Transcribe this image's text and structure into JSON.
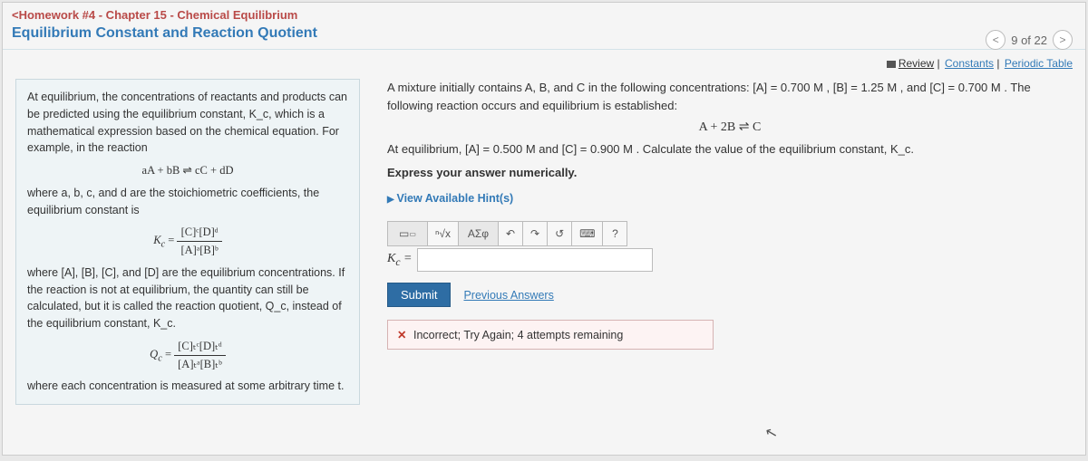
{
  "header": {
    "breadcrumb": "<Homework #4 - Chapter 15 - Chemical Equilibrium",
    "title": "Equilibrium Constant and Reaction Quotient",
    "progress": "9 of 22"
  },
  "toolbar": {
    "review": "Review",
    "constants": "Constants",
    "periodic": "Periodic Table"
  },
  "left": {
    "p1": "At equilibrium, the concentrations of reactants and products can be predicted using the equilibrium constant, K_c, which is a mathematical expression based on the chemical equation. For example, in the reaction",
    "eq1": "aA + bB ⇌ cC + dD",
    "p2": "where a, b, c, and d are the stoichiometric coefficients, the equilibrium constant is",
    "kc_num": "[C]ᶜ[D]ᵈ",
    "kc_den": "[A]ᵃ[B]ᵇ",
    "p3": "where [A], [B], [C], and [D] are the equilibrium concentrations. If the reaction is not at equilibrium, the quantity can still be calculated, but it is called the reaction quotient, Q_c, instead of the equilibrium constant, K_c.",
    "qc_num": "[C]ₜᶜ[D]ₜᵈ",
    "qc_den": "[A]ₜᵃ[B]ₜᵇ",
    "p4": "where each concentration is measured at some arbitrary time t."
  },
  "right": {
    "intro": "A mixture initially contains A, B, and C in the following concentrations: [A] = 0.700 M , [B] = 1.25 M , and [C] = 0.700 M . The following reaction occurs and equilibrium is established:",
    "eq": "A + 2B ⇌ C",
    "prompt": "At equilibrium, [A] = 0.500 M and [C] = 0.900 M . Calculate the value of the equilibrium constant, K_c.",
    "express": "Express your answer numerically.",
    "hints": "View Available Hint(s)",
    "lbl": "K_c =",
    "tb_sqrt": "ⁿ√x",
    "tb_greek": "ΑΣφ",
    "tb_undo": "↶",
    "tb_redo": "↷",
    "tb_reset": "↺",
    "tb_key": "⌨",
    "tb_help": "?",
    "submit": "Submit",
    "prev": "Previous Answers",
    "feedback": "Incorrect; Try Again; 4 attempts remaining"
  }
}
